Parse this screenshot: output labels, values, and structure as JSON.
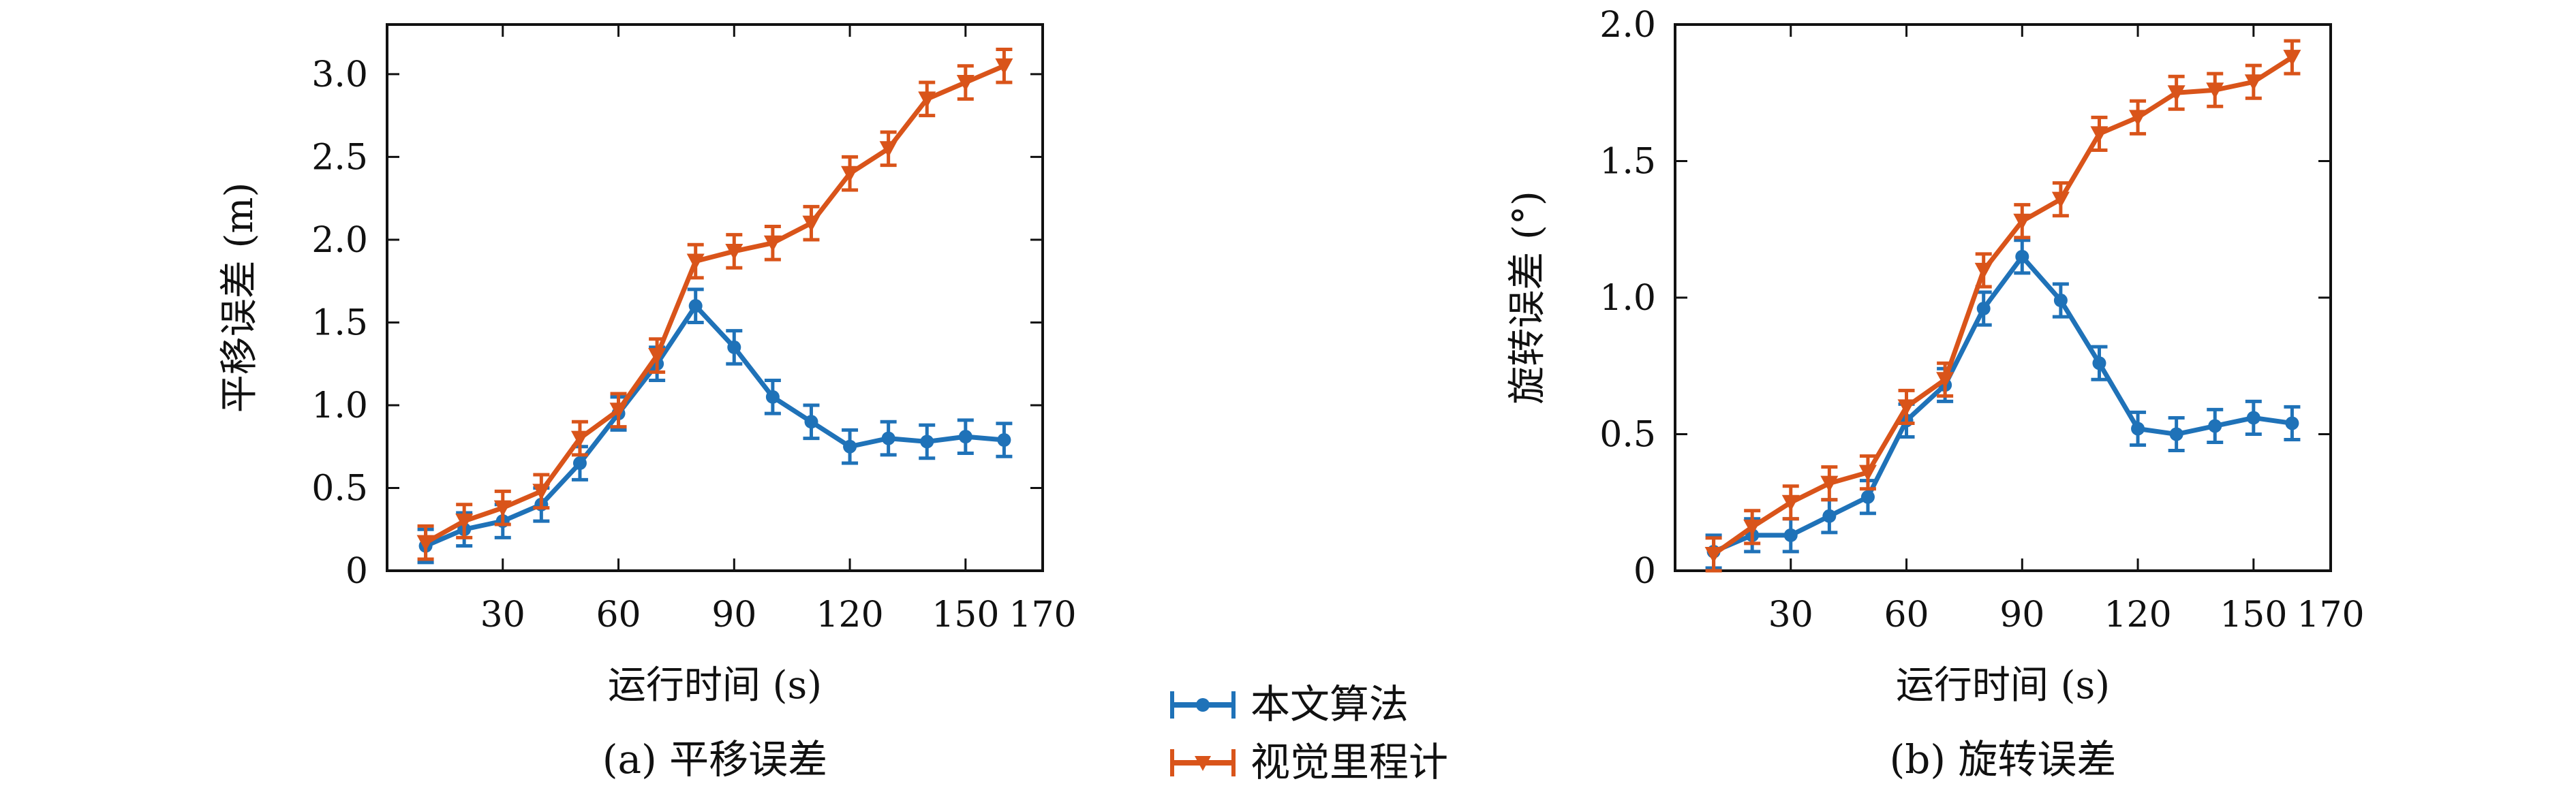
{
  "colors": {
    "blue": "#1f72b8",
    "orange": "#d9541a",
    "axis": "#111111"
  },
  "legend": {
    "entries": [
      "本文算法",
      "视觉里程计"
    ]
  },
  "chart_data": [
    {
      "type": "line",
      "caption": "(a) 平移误差",
      "xlabel": "运行时间 (s)",
      "ylabel": "平移误差 (m)",
      "xlim": [
        0,
        170
      ],
      "ylim": [
        0,
        3.3
      ],
      "xticks": [
        30,
        60,
        90,
        120,
        150,
        170
      ],
      "yticks": [
        0,
        0.5,
        1.0,
        1.5,
        2.0,
        2.5,
        3.0
      ],
      "ytick_labels": [
        "0",
        "0.5",
        "1.0",
        "1.5",
        "2.0",
        "2.5",
        "3.0"
      ],
      "grid": false,
      "error_bars": true,
      "x": [
        10,
        20,
        30,
        40,
        50,
        60,
        70,
        80,
        90,
        100,
        110,
        120,
        130,
        140,
        150,
        160
      ],
      "series": [
        {
          "name": "本文算法",
          "color": "#1f72b8",
          "marker": "circle",
          "values": [
            0.15,
            0.25,
            0.3,
            0.4,
            0.65,
            0.95,
            1.25,
            1.6,
            1.35,
            1.05,
            0.9,
            0.75,
            0.8,
            0.78,
            0.81,
            0.79
          ],
          "errors": [
            0.1,
            0.1,
            0.1,
            0.1,
            0.1,
            0.1,
            0.1,
            0.1,
            0.1,
            0.1,
            0.1,
            0.1,
            0.1,
            0.1,
            0.1,
            0.1
          ]
        },
        {
          "name": "视觉里程计",
          "color": "#d9541a",
          "marker": "triangle-down",
          "values": [
            0.17,
            0.3,
            0.38,
            0.48,
            0.8,
            0.97,
            1.3,
            1.87,
            1.93,
            1.98,
            2.1,
            2.4,
            2.55,
            2.85,
            2.95,
            3.05
          ],
          "errors": [
            0.1,
            0.1,
            0.1,
            0.1,
            0.1,
            0.1,
            0.1,
            0.1,
            0.1,
            0.1,
            0.1,
            0.1,
            0.1,
            0.1,
            0.1,
            0.1
          ]
        }
      ]
    },
    {
      "type": "line",
      "caption": "(b) 旋转误差",
      "xlabel": "运行时间 (s)",
      "ylabel": "旋转误差 (°)",
      "xlim": [
        0,
        170
      ],
      "ylim": [
        0,
        2.0
      ],
      "xticks": [
        30,
        60,
        90,
        120,
        150,
        170
      ],
      "yticks": [
        0,
        0.5,
        1.0,
        1.5,
        2.0
      ],
      "ytick_labels": [
        "0",
        "0.5",
        "1.0",
        "1.5",
        "2.0"
      ],
      "grid": false,
      "error_bars": true,
      "x": [
        10,
        20,
        30,
        40,
        50,
        60,
        70,
        80,
        90,
        100,
        110,
        120,
        130,
        140,
        150,
        160
      ],
      "series": [
        {
          "name": "本文算法",
          "color": "#1f72b8",
          "marker": "circle",
          "values": [
            0.07,
            0.13,
            0.13,
            0.2,
            0.27,
            0.55,
            0.68,
            0.96,
            1.15,
            0.99,
            0.76,
            0.52,
            0.5,
            0.53,
            0.56,
            0.54
          ],
          "errors": [
            0.06,
            0.06,
            0.06,
            0.06,
            0.06,
            0.06,
            0.06,
            0.06,
            0.06,
            0.06,
            0.06,
            0.06,
            0.06,
            0.06,
            0.06,
            0.06
          ]
        },
        {
          "name": "视觉里程计",
          "color": "#d9541a",
          "marker": "triangle-down",
          "values": [
            0.06,
            0.16,
            0.25,
            0.32,
            0.36,
            0.6,
            0.7,
            1.1,
            1.28,
            1.36,
            1.6,
            1.66,
            1.75,
            1.76,
            1.79,
            1.88
          ],
          "errors": [
            0.06,
            0.06,
            0.06,
            0.06,
            0.06,
            0.06,
            0.06,
            0.06,
            0.06,
            0.06,
            0.06,
            0.06,
            0.06,
            0.06,
            0.06,
            0.06
          ]
        }
      ]
    }
  ]
}
